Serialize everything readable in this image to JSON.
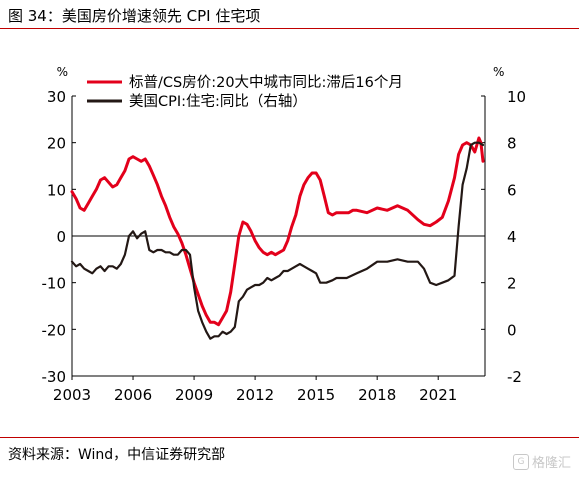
{
  "figure": {
    "title": "图 34：美国房价增速领先 CPI 住宅项",
    "source": "资料来源：Wind，中信证券研究部",
    "watermark": "格隆汇"
  },
  "colors": {
    "series1": "#e3001b",
    "series2": "#231815",
    "rule": "#c00000"
  },
  "chart_data": {
    "type": "line",
    "title": "",
    "xlabel": "",
    "left_unit": "%",
    "right_unit": "%",
    "ylim_left": [
      -30,
      30
    ],
    "ylim_right": [
      -2,
      10
    ],
    "xlim": [
      2003,
      2023.3
    ],
    "left_ticks": [
      30,
      20,
      10,
      0,
      -10,
      -20,
      -30
    ],
    "right_ticks": [
      10,
      8,
      6,
      4,
      2,
      0,
      -2
    ],
    "x_ticks": [
      2003,
      2006,
      2009,
      2012,
      2015,
      2018,
      2021
    ],
    "zero_line_left": 0,
    "legend_position": "top-left",
    "grid": false,
    "series": [
      {
        "name": "标普/CS房价:20大中城市同比:滞后16个月",
        "axis": "left",
        "x": [
          2003.0,
          2003.2,
          2003.4,
          2003.6,
          2003.8,
          2004.0,
          2004.2,
          2004.4,
          2004.6,
          2004.8,
          2005.0,
          2005.2,
          2005.4,
          2005.6,
          2005.8,
          2006.0,
          2006.2,
          2006.4,
          2006.6,
          2006.8,
          2007.0,
          2007.2,
          2007.4,
          2007.6,
          2007.8,
          2008.0,
          2008.2,
          2008.4,
          2008.6,
          2008.8,
          2009.0,
          2009.2,
          2009.4,
          2009.6,
          2009.8,
          2010.0,
          2010.2,
          2010.4,
          2010.6,
          2010.8,
          2011.0,
          2011.2,
          2011.4,
          2011.6,
          2011.8,
          2012.0,
          2012.2,
          2012.4,
          2012.6,
          2012.8,
          2013.0,
          2013.2,
          2013.4,
          2013.6,
          2013.8,
          2014.0,
          2014.2,
          2014.4,
          2014.6,
          2014.8,
          2015.0,
          2015.2,
          2015.4,
          2015.6,
          2015.8,
          2016.0,
          2016.2,
          2016.4,
          2016.6,
          2016.8,
          2017.0,
          2017.5,
          2018.0,
          2018.5,
          2019.0,
          2019.5,
          2020.0,
          2020.3,
          2020.6,
          2020.9,
          2021.2,
          2021.5,
          2021.8,
          2022.0,
          2022.2,
          2022.4,
          2022.6,
          2022.8,
          2023.0,
          2023.1,
          2023.2
        ],
        "values": [
          9.5,
          8.0,
          6.0,
          5.5,
          7.0,
          8.5,
          10.0,
          12.0,
          12.5,
          11.5,
          10.5,
          11.0,
          12.5,
          14.0,
          16.5,
          17.0,
          16.5,
          16.0,
          16.5,
          15.0,
          13.0,
          11.0,
          8.5,
          6.5,
          4.0,
          2.0,
          0.5,
          -1.5,
          -4.0,
          -7.0,
          -10.0,
          -12.5,
          -15.0,
          -17.0,
          -18.5,
          -18.5,
          -19.0,
          -17.5,
          -16.0,
          -12.0,
          -6.0,
          0.0,
          3.0,
          2.5,
          1.0,
          -1.0,
          -2.5,
          -3.5,
          -4.0,
          -3.5,
          -4.0,
          -3.5,
          -3.0,
          -1.0,
          2.0,
          4.5,
          8.5,
          11.0,
          12.5,
          13.5,
          13.5,
          12.0,
          8.5,
          5.0,
          4.5,
          5.0,
          5.0,
          5.0,
          5.0,
          5.5,
          5.5,
          5.0,
          6.0,
          5.5,
          6.5,
          5.5,
          3.5,
          2.5,
          2.2,
          3.0,
          4.0,
          7.5,
          12.5,
          17.5,
          19.5,
          20.0,
          19.5,
          18.0,
          21.0,
          20.0,
          16.0
        ]
      },
      {
        "name": "美国CPI:住宅:同比（右轴）",
        "axis": "right",
        "x": [
          2003.0,
          2003.2,
          2003.4,
          2003.6,
          2003.8,
          2004.0,
          2004.2,
          2004.4,
          2004.6,
          2004.8,
          2005.0,
          2005.2,
          2005.4,
          2005.6,
          2005.8,
          2006.0,
          2006.2,
          2006.4,
          2006.6,
          2006.8,
          2007.0,
          2007.2,
          2007.4,
          2007.6,
          2007.8,
          2008.0,
          2008.2,
          2008.4,
          2008.6,
          2008.8,
          2009.0,
          2009.2,
          2009.4,
          2009.6,
          2009.8,
          2010.0,
          2010.2,
          2010.4,
          2010.6,
          2010.8,
          2011.0,
          2011.2,
          2011.4,
          2011.6,
          2011.8,
          2012.0,
          2012.2,
          2012.4,
          2012.6,
          2012.8,
          2013.0,
          2013.2,
          2013.4,
          2013.6,
          2013.8,
          2014.0,
          2014.2,
          2014.4,
          2014.6,
          2014.8,
          2015.0,
          2015.2,
          2015.5,
          2015.8,
          2016.0,
          2016.5,
          2017.0,
          2017.5,
          2018.0,
          2018.5,
          2019.0,
          2019.5,
          2020.0,
          2020.3,
          2020.6,
          2020.9,
          2021.2,
          2021.5,
          2021.8,
          2022.0,
          2022.2,
          2022.4,
          2022.6,
          2022.8,
          2023.0,
          2023.2
        ],
        "values": [
          2.9,
          2.7,
          2.8,
          2.6,
          2.5,
          2.4,
          2.6,
          2.7,
          2.5,
          2.7,
          2.7,
          2.6,
          2.8,
          3.2,
          4.0,
          4.2,
          3.9,
          4.1,
          4.2,
          3.4,
          3.3,
          3.4,
          3.4,
          3.3,
          3.3,
          3.2,
          3.2,
          3.4,
          3.4,
          3.2,
          1.8,
          0.8,
          0.3,
          -0.1,
          -0.4,
          -0.3,
          -0.3,
          -0.1,
          -0.2,
          -0.1,
          0.1,
          1.2,
          1.4,
          1.7,
          1.8,
          1.9,
          1.9,
          2.0,
          2.2,
          2.1,
          2.2,
          2.3,
          2.5,
          2.5,
          2.6,
          2.7,
          2.8,
          2.7,
          2.6,
          2.5,
          2.4,
          2.0,
          2.0,
          2.1,
          2.2,
          2.2,
          2.4,
          2.6,
          2.9,
          2.9,
          3.0,
          2.9,
          2.9,
          2.6,
          2.0,
          1.9,
          2.0,
          2.1,
          2.3,
          4.4,
          6.2,
          6.9,
          7.9,
          8.0,
          8.0,
          7.9
        ]
      }
    ]
  }
}
